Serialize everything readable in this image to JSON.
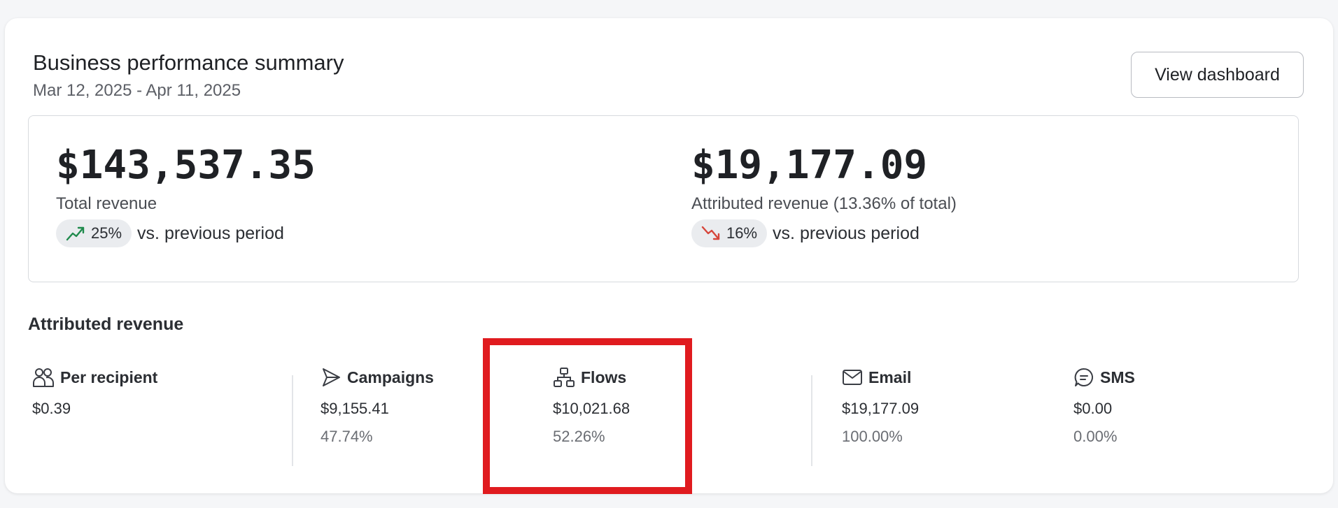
{
  "header": {
    "title": "Business performance summary",
    "date_range": "Mar 12, 2025 - Apr 11, 2025",
    "view_button_label": "View dashboard"
  },
  "summary": {
    "total": {
      "value": "$143,537.35",
      "label": "Total revenue",
      "change": "25%",
      "direction": "up",
      "comparison": "vs. previous period",
      "trend_color": "#1f8a4c"
    },
    "attributed": {
      "value": "$19,177.09",
      "label": "Attributed revenue (13.36% of total)",
      "change": "16%",
      "direction": "down",
      "comparison": "vs. previous period",
      "trend_color": "#d6453a"
    }
  },
  "attributed_section": {
    "title": "Attributed revenue",
    "items": [
      {
        "icon": "people-icon",
        "label": "Per recipient",
        "value": "$0.39",
        "percent": ""
      },
      {
        "icon": "send-icon",
        "label": "Campaigns",
        "value": "$9,155.41",
        "percent": "47.74%"
      },
      {
        "icon": "flows-icon",
        "label": "Flows",
        "value": "$10,021.68",
        "percent": "52.26%"
      },
      {
        "icon": "mail-icon",
        "label": "Email",
        "value": "$19,177.09",
        "percent": "100.00%"
      },
      {
        "icon": "sms-icon",
        "label": "SMS",
        "value": "$0.00",
        "percent": "0.00%"
      }
    ]
  },
  "colors": {
    "highlight": "#e01b1f",
    "card_background": "#ffffff",
    "page_background": "#f5f6f8"
  }
}
